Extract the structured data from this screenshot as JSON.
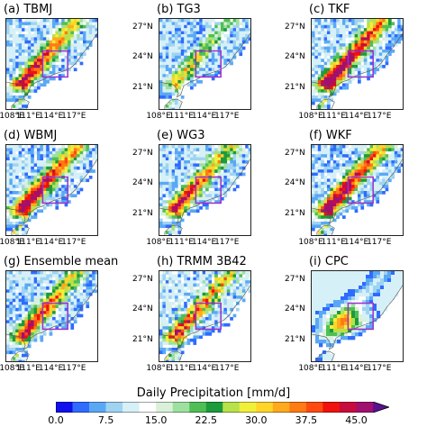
{
  "panels": [
    {
      "label": "(a) TBMJ",
      "intensity": 1.05,
      "seed": 1,
      "style": "model",
      "show_y": false
    },
    {
      "label": "(b) TG3",
      "intensity": 0.7,
      "seed": 2,
      "style": "model",
      "show_y": true
    },
    {
      "label": "(c) TKF",
      "intensity": 1.2,
      "seed": 3,
      "style": "model",
      "show_y": true
    },
    {
      "label": "(d) WBMJ",
      "intensity": 1.15,
      "seed": 4,
      "style": "model",
      "show_y": false
    },
    {
      "label": "(e) WG3",
      "intensity": 1.0,
      "seed": 5,
      "style": "model",
      "show_y": true
    },
    {
      "label": "(f) WKF",
      "intensity": 1.15,
      "seed": 6,
      "style": "model",
      "show_y": true
    },
    {
      "label": "(g) Ensemble mean",
      "intensity": 1.0,
      "seed": 7,
      "style": "model",
      "show_y": false
    },
    {
      "label": "(h) TRMM 3B42",
      "intensity": 0.95,
      "seed": 8,
      "style": "obs",
      "show_y": true
    },
    {
      "label": "(i) CPC",
      "intensity": 0.75,
      "seed": 9,
      "style": "smooth",
      "show_y": true
    }
  ],
  "axes": {
    "lon_ticks": [
      "108°E",
      "111°E",
      "114°E",
      "117°E"
    ],
    "lat_ticks": [
      "27°N",
      "24°N",
      "21°N"
    ],
    "lon_range": [
      108,
      120
    ],
    "lat_range": [
      19,
      28
    ]
  },
  "colorbar": {
    "title": "Daily Precipitation [mm/d]",
    "tick_labels": [
      "0.0",
      "7.5",
      "15.0",
      "22.5",
      "30.0",
      "37.5",
      "45.0"
    ],
    "colors": [
      "#1010ee",
      "#2f6bff",
      "#5aa8f5",
      "#9fd3f2",
      "#d6f0f7",
      "#ffffff",
      "#d9f1d9",
      "#9ee0a0",
      "#4fbf55",
      "#1c9a3c",
      "#b8e24a",
      "#f0f03a",
      "#ffd52a",
      "#ffaa1e",
      "#ff7b14",
      "#ff4a10",
      "#f0120c",
      "#c80a3c",
      "#a0106e"
    ],
    "extend_color": "#5a1090"
  },
  "box": {
    "color": "#9b30c8",
    "lon": [
      112.8,
      116.1
    ],
    "lat": [
      22.2,
      24.8
    ]
  }
}
